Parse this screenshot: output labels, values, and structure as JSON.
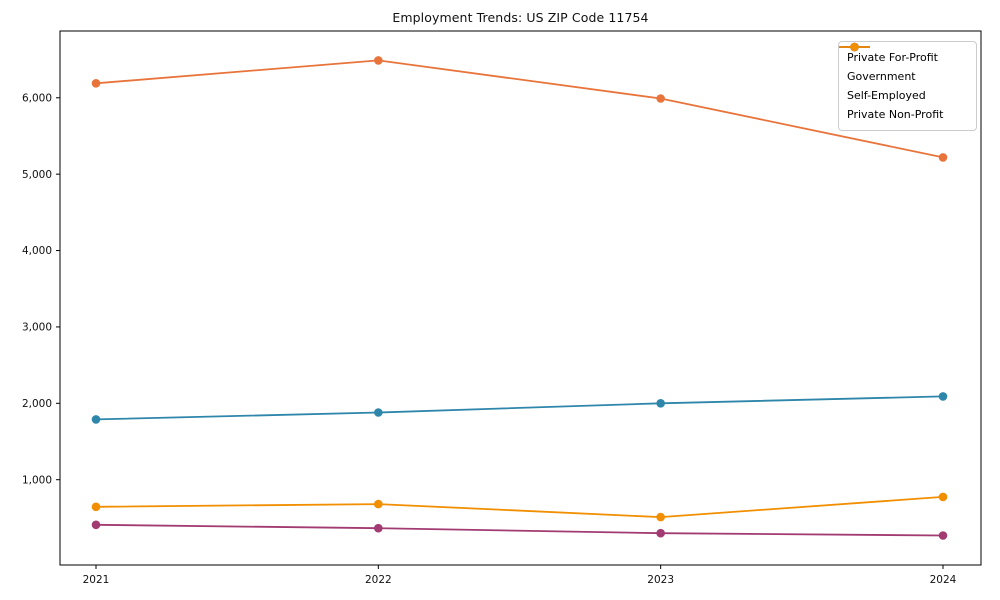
{
  "chart_data": {
    "type": "line",
    "title": "Employment Trends: US ZIP Code 11754",
    "categories": [
      "2021",
      "2022",
      "2023",
      "2024"
    ],
    "series": [
      {
        "name": "Private For-Profit",
        "color": "#E8743B",
        "values": [
          6190,
          6490,
          5990,
          5220
        ]
      },
      {
        "name": "Government",
        "color": "#2E86AB",
        "values": [
          1790,
          1880,
          2000,
          2090
        ]
      },
      {
        "name": "Self-Employed",
        "color": "#A23B72",
        "values": [
          410,
          365,
          300,
          270
        ]
      },
      {
        "name": "Private Non-Profit",
        "color": "#F18F01",
        "values": [
          645,
          680,
          510,
          775
        ]
      }
    ],
    "yticks": [
      1000,
      2000,
      3000,
      4000,
      5000,
      6000
    ],
    "ytick_labels": [
      "1,000",
      "2,000",
      "3,000",
      "4,000",
      "5,000",
      "6,000"
    ],
    "ylim": [
      -120,
      6880
    ],
    "xlabel": "",
    "ylabel": "",
    "grid": false,
    "legend_position": "upper right",
    "marker": "circle",
    "axis_color": "#000000",
    "text_color": "#111111"
  }
}
